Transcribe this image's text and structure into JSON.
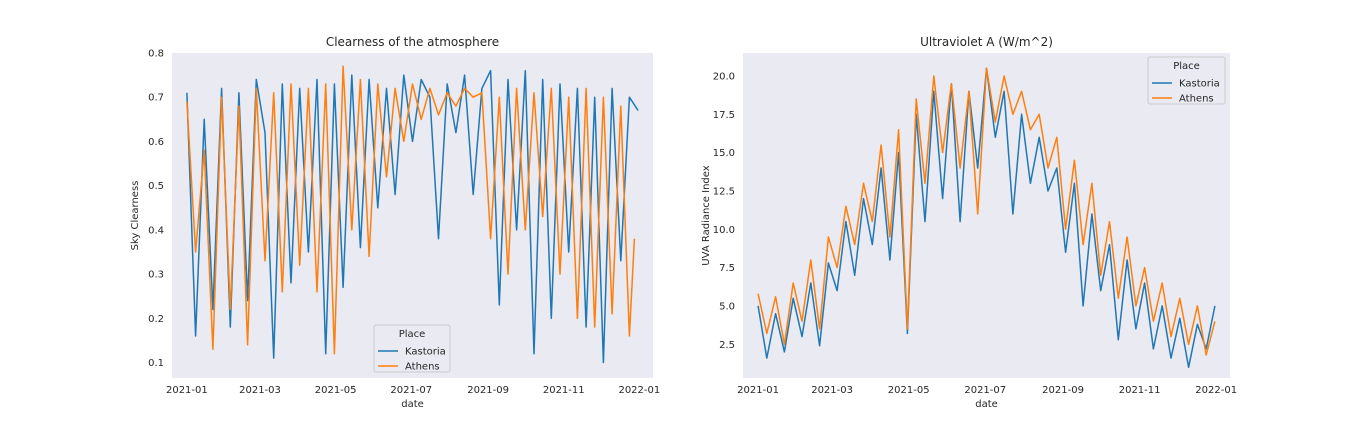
{
  "chart_data": [
    {
      "type": "line",
      "title": "Clearness of the atmosphere",
      "xlabel": "date",
      "ylabel": "Sky Clearness",
      "x_range": [
        "2020-12-20",
        "2022-01-12"
      ],
      "ylim": [
        0.065,
        0.8
      ],
      "x_ticks": [
        "2021-01",
        "2021-03",
        "2021-05",
        "2021-07",
        "2021-09",
        "2021-11",
        "2022-01"
      ],
      "y_ticks": [
        0.1,
        0.2,
        0.3,
        0.4,
        0.5,
        0.6,
        0.7,
        0.8
      ],
      "y_tick_labels": [
        "0.1",
        "0.2",
        "0.3",
        "0.4",
        "0.5",
        "0.6",
        "0.7",
        "0.8"
      ],
      "grid": false,
      "background": "#eaeaf2",
      "legend": {
        "title": "Place",
        "placement": "lower-center"
      },
      "series": [
        {
          "name": "Kastoria",
          "color": "#1f77b4",
          "x": [
            "2021-01-01",
            "2021-01-08",
            "2021-01-15",
            "2021-01-22",
            "2021-01-29",
            "2021-02-05",
            "2021-02-12",
            "2021-02-19",
            "2021-02-26",
            "2021-03-05",
            "2021-03-12",
            "2021-03-19",
            "2021-03-26",
            "2021-04-02",
            "2021-04-09",
            "2021-04-16",
            "2021-04-23",
            "2021-04-30",
            "2021-05-07",
            "2021-05-14",
            "2021-05-21",
            "2021-05-28",
            "2021-06-04",
            "2021-06-11",
            "2021-06-18",
            "2021-06-25",
            "2021-07-02",
            "2021-07-09",
            "2021-07-16",
            "2021-07-23",
            "2021-07-30",
            "2021-08-06",
            "2021-08-13",
            "2021-08-20",
            "2021-08-27",
            "2021-09-03",
            "2021-09-10",
            "2021-09-17",
            "2021-09-24",
            "2021-10-01",
            "2021-10-08",
            "2021-10-15",
            "2021-10-22",
            "2021-10-29",
            "2021-11-05",
            "2021-11-12",
            "2021-11-19",
            "2021-11-26",
            "2021-12-03",
            "2021-12-10",
            "2021-12-17",
            "2021-12-24",
            "2021-12-31"
          ],
          "values": [
            0.71,
            0.16,
            0.65,
            0.22,
            0.72,
            0.18,
            0.71,
            0.24,
            0.74,
            0.62,
            0.11,
            0.73,
            0.28,
            0.72,
            0.35,
            0.74,
            0.12,
            0.73,
            0.27,
            0.75,
            0.36,
            0.74,
            0.45,
            0.72,
            0.48,
            0.75,
            0.6,
            0.74,
            0.7,
            0.38,
            0.73,
            0.62,
            0.75,
            0.48,
            0.72,
            0.76,
            0.23,
            0.74,
            0.4,
            0.76,
            0.12,
            0.74,
            0.2,
            0.73,
            0.35,
            0.72,
            0.18,
            0.7,
            0.1,
            0.72,
            0.33,
            0.7,
            0.67
          ]
        },
        {
          "name": "Athens",
          "color": "#ff7f0e",
          "x": [
            "2021-01-01",
            "2021-01-08",
            "2021-01-15",
            "2021-01-22",
            "2021-01-29",
            "2021-02-05",
            "2021-02-12",
            "2021-02-19",
            "2021-02-26",
            "2021-03-05",
            "2021-03-12",
            "2021-03-19",
            "2021-03-26",
            "2021-04-02",
            "2021-04-09",
            "2021-04-16",
            "2021-04-23",
            "2021-04-30",
            "2021-05-07",
            "2021-05-14",
            "2021-05-21",
            "2021-05-28",
            "2021-06-04",
            "2021-06-11",
            "2021-06-18",
            "2021-06-25",
            "2021-07-02",
            "2021-07-09",
            "2021-07-16",
            "2021-07-23",
            "2021-07-30",
            "2021-08-06",
            "2021-08-13",
            "2021-08-20",
            "2021-08-27",
            "2021-09-03",
            "2021-09-10",
            "2021-09-17",
            "2021-09-24",
            "2021-10-01",
            "2021-10-08",
            "2021-10-15",
            "2021-10-22",
            "2021-10-29",
            "2021-11-05",
            "2021-11-12",
            "2021-11-19",
            "2021-11-26",
            "2021-12-03",
            "2021-12-10",
            "2021-12-17",
            "2021-12-24",
            "2021-12-28"
          ],
          "values": [
            0.69,
            0.35,
            0.58,
            0.13,
            0.7,
            0.22,
            0.68,
            0.14,
            0.72,
            0.33,
            0.71,
            0.26,
            0.73,
            0.32,
            0.72,
            0.26,
            0.73,
            0.12,
            0.77,
            0.4,
            0.74,
            0.34,
            0.73,
            0.52,
            0.72,
            0.6,
            0.73,
            0.65,
            0.72,
            0.66,
            0.71,
            0.68,
            0.72,
            0.7,
            0.71,
            0.38,
            0.7,
            0.3,
            0.72,
            0.4,
            0.71,
            0.43,
            0.72,
            0.3,
            0.7,
            0.2,
            0.72,
            0.18,
            0.7,
            0.21,
            0.68,
            0.16,
            0.38
          ]
        }
      ]
    },
    {
      "type": "line",
      "title": "Ultraviolet A (W/m^2)",
      "xlabel": "date",
      "ylabel": "UVA Radiance Index",
      "x_range": [
        "2020-12-20",
        "2022-01-12"
      ],
      "ylim": [
        0.3,
        21.5
      ],
      "x_ticks": [
        "2021-01",
        "2021-03",
        "2021-05",
        "2021-07",
        "2021-09",
        "2021-11",
        "2022-01"
      ],
      "y_ticks": [
        2.5,
        5.0,
        7.5,
        10.0,
        12.5,
        15.0,
        17.5,
        20.0
      ],
      "y_tick_labels": [
        "2.5",
        "5.0",
        "7.5",
        "10.0",
        "12.5",
        "15.0",
        "17.5",
        "20.0"
      ],
      "grid": false,
      "background": "#eaeaf2",
      "legend": {
        "title": "Place",
        "placement": "upper-right"
      },
      "series": [
        {
          "name": "Kastoria",
          "color": "#1f77b4",
          "x": [
            "2021-01-01",
            "2021-01-08",
            "2021-01-15",
            "2021-01-22",
            "2021-01-29",
            "2021-02-05",
            "2021-02-12",
            "2021-02-19",
            "2021-02-26",
            "2021-03-05",
            "2021-03-12",
            "2021-03-19",
            "2021-03-26",
            "2021-04-02",
            "2021-04-09",
            "2021-04-16",
            "2021-04-23",
            "2021-04-30",
            "2021-05-07",
            "2021-05-14",
            "2021-05-21",
            "2021-05-28",
            "2021-06-04",
            "2021-06-11",
            "2021-06-18",
            "2021-06-25",
            "2021-07-02",
            "2021-07-09",
            "2021-07-16",
            "2021-07-23",
            "2021-07-30",
            "2021-08-06",
            "2021-08-13",
            "2021-08-20",
            "2021-08-27",
            "2021-09-03",
            "2021-09-10",
            "2021-09-17",
            "2021-09-24",
            "2021-10-01",
            "2021-10-08",
            "2021-10-15",
            "2021-10-22",
            "2021-10-29",
            "2021-11-05",
            "2021-11-12",
            "2021-11-19",
            "2021-11-26",
            "2021-12-03",
            "2021-12-10",
            "2021-12-17",
            "2021-12-24",
            "2021-12-31"
          ],
          "values": [
            5.0,
            1.6,
            4.5,
            2.0,
            5.5,
            3.0,
            6.5,
            2.4,
            7.8,
            6.0,
            10.5,
            7.0,
            12.0,
            9.0,
            14.0,
            8.0,
            15.0,
            3.2,
            17.5,
            10.5,
            19.0,
            12.0,
            19.5,
            10.5,
            19.0,
            14.0,
            20.5,
            16.0,
            19.0,
            11.0,
            17.5,
            13.0,
            16.0,
            12.5,
            14.0,
            8.5,
            13.0,
            5.0,
            11.0,
            6.0,
            9.0,
            2.8,
            8.0,
            3.5,
            6.5,
            2.2,
            5.0,
            1.6,
            4.2,
            1.0,
            3.8,
            2.2,
            5.0
          ]
        },
        {
          "name": "Athens",
          "color": "#ff7f0e",
          "x": [
            "2021-01-01",
            "2021-01-08",
            "2021-01-15",
            "2021-01-22",
            "2021-01-29",
            "2021-02-05",
            "2021-02-12",
            "2021-02-19",
            "2021-02-26",
            "2021-03-05",
            "2021-03-12",
            "2021-03-19",
            "2021-03-26",
            "2021-04-02",
            "2021-04-09",
            "2021-04-16",
            "2021-04-23",
            "2021-04-30",
            "2021-05-07",
            "2021-05-14",
            "2021-05-21",
            "2021-05-28",
            "2021-06-04",
            "2021-06-11",
            "2021-06-18",
            "2021-06-25",
            "2021-07-02",
            "2021-07-09",
            "2021-07-16",
            "2021-07-23",
            "2021-07-30",
            "2021-08-06",
            "2021-08-13",
            "2021-08-20",
            "2021-08-27",
            "2021-09-03",
            "2021-09-10",
            "2021-09-17",
            "2021-09-24",
            "2021-10-01",
            "2021-10-08",
            "2021-10-15",
            "2021-10-22",
            "2021-10-29",
            "2021-11-05",
            "2021-11-12",
            "2021-11-19",
            "2021-11-26",
            "2021-12-03",
            "2021-12-10",
            "2021-12-17",
            "2021-12-24",
            "2021-12-31"
          ],
          "values": [
            5.8,
            3.2,
            5.6,
            2.5,
            6.5,
            4.0,
            8.0,
            3.5,
            9.5,
            7.5,
            11.5,
            9.0,
            13.0,
            10.5,
            15.5,
            9.5,
            16.5,
            3.5,
            18.5,
            13.0,
            20.0,
            15.0,
            19.5,
            14.0,
            19.0,
            11.0,
            20.5,
            17.0,
            20.0,
            17.5,
            19.0,
            16.5,
            17.5,
            14.0,
            16.0,
            10.0,
            14.5,
            9.0,
            13.0,
            7.0,
            10.5,
            5.5,
            9.5,
            5.0,
            7.5,
            4.0,
            6.5,
            3.0,
            5.5,
            2.5,
            5.0,
            1.8,
            4.0
          ]
        }
      ]
    }
  ]
}
